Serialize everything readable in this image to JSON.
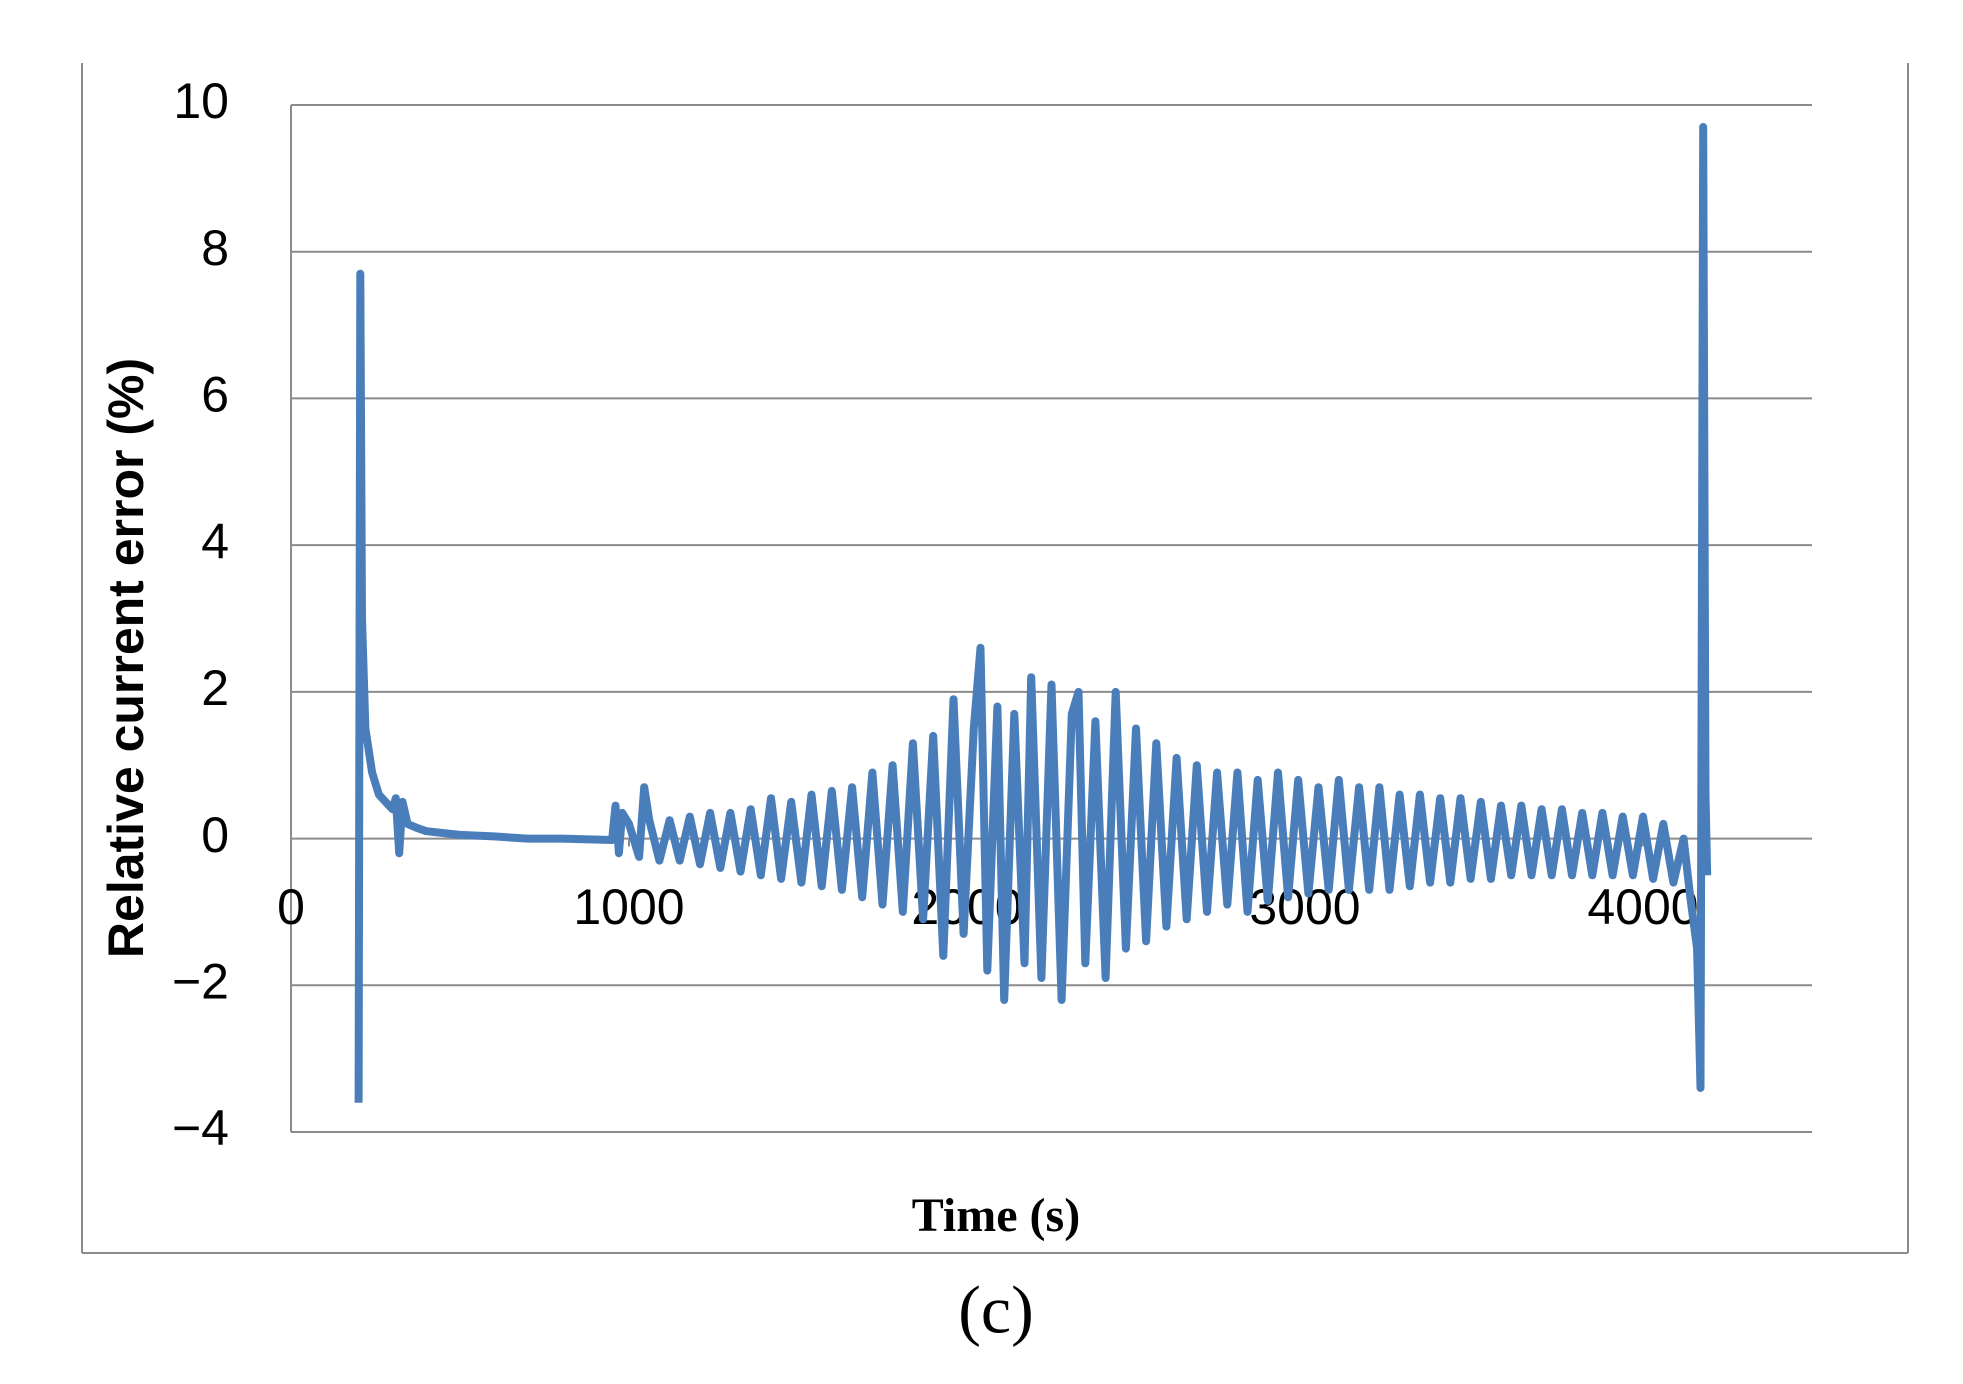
{
  "chart_data": {
    "type": "line",
    "x_label": "Time (s)",
    "y_label": "Relative current error (%)",
    "caption": "(c)",
    "xlim": [
      0,
      4500
    ],
    "xticks": [
      0,
      1000,
      2000,
      3000,
      4000
    ],
    "ylim": [
      -4,
      10
    ],
    "yticks": [
      {
        "value": -4,
        "label": "−4"
      },
      {
        "value": -2,
        "label": "−2"
      },
      0,
      2,
      4,
      6,
      8,
      10
    ],
    "grid": true,
    "x": [
      200,
      205,
      210,
      220,
      240,
      260,
      280,
      300,
      310,
      320,
      330,
      345,
      370,
      400,
      500,
      600,
      700,
      800,
      950,
      960,
      970,
      980,
      1000,
      1030,
      1045,
      1060,
      1090,
      1120,
      1150,
      1180,
      1210,
      1240,
      1270,
      1300,
      1330,
      1360,
      1390,
      1420,
      1450,
      1480,
      1510,
      1540,
      1570,
      1600,
      1630,
      1660,
      1690,
      1720,
      1750,
      1780,
      1810,
      1840,
      1870,
      1900,
      1930,
      1960,
      1990,
      2020,
      2040,
      2060,
      2090,
      2110,
      2140,
      2170,
      2190,
      2220,
      2250,
      2280,
      2310,
      2330,
      2350,
      2380,
      2410,
      2440,
      2470,
      2500,
      2530,
      2560,
      2590,
      2620,
      2650,
      2680,
      2710,
      2740,
      2770,
      2800,
      2830,
      2860,
      2890,
      2920,
      2950,
      2980,
      3010,
      3040,
      3070,
      3100,
      3130,
      3160,
      3190,
      3220,
      3250,
      3280,
      3310,
      3340,
      3370,
      3400,
      3430,
      3460,
      3490,
      3520,
      3550,
      3580,
      3610,
      3640,
      3670,
      3700,
      3730,
      3760,
      3790,
      3820,
      3850,
      3880,
      3910,
      3940,
      3970,
      4000,
      4030,
      4060,
      4090,
      4120,
      4140,
      4160,
      4170,
      4178,
      4185,
      4190
    ],
    "series": [
      {
        "color": "#4a7ebb",
        "values": [
          -3.6,
          7.7,
          3.0,
          1.5,
          0.9,
          0.6,
          0.5,
          0.4,
          0.55,
          -0.2,
          0.5,
          0.2,
          0.15,
          0.1,
          0.05,
          0.03,
          0.0,
          0.0,
          -0.02,
          0.45,
          -0.2,
          0.35,
          0.2,
          -0.25,
          0.7,
          0.25,
          -0.3,
          0.25,
          -0.3,
          0.3,
          -0.35,
          0.35,
          -0.4,
          0.35,
          -0.45,
          0.4,
          -0.5,
          0.55,
          -0.55,
          0.5,
          -0.6,
          0.6,
          -0.65,
          0.65,
          -0.7,
          0.7,
          -0.8,
          0.9,
          -0.9,
          1.0,
          -1.0,
          1.3,
          -1.1,
          1.4,
          -1.6,
          1.9,
          -1.3,
          1.5,
          2.6,
          -1.8,
          1.8,
          -2.2,
          1.7,
          -1.7,
          2.2,
          -1.9,
          2.1,
          -2.2,
          1.7,
          2.0,
          -1.7,
          1.6,
          -1.9,
          2.0,
          -1.5,
          1.5,
          -1.4,
          1.3,
          -1.2,
          1.1,
          -1.1,
          1.0,
          -1.0,
          0.9,
          -0.9,
          0.9,
          -1.0,
          0.8,
          -0.85,
          0.9,
          -0.8,
          0.8,
          -0.75,
          0.7,
          -0.7,
          0.8,
          -0.7,
          0.7,
          -0.7,
          0.7,
          -0.7,
          0.6,
          -0.65,
          0.6,
          -0.6,
          0.55,
          -0.6,
          0.55,
          -0.55,
          0.5,
          -0.55,
          0.45,
          -0.5,
          0.45,
          -0.5,
          0.4,
          -0.5,
          0.4,
          -0.5,
          0.35,
          -0.5,
          0.35,
          -0.5,
          0.3,
          -0.5,
          0.3,
          -0.55,
          0.2,
          -0.6,
          0.0,
          -0.8,
          -1.5,
          -3.4,
          9.7,
          0.6,
          -0.5
        ]
      }
    ]
  }
}
